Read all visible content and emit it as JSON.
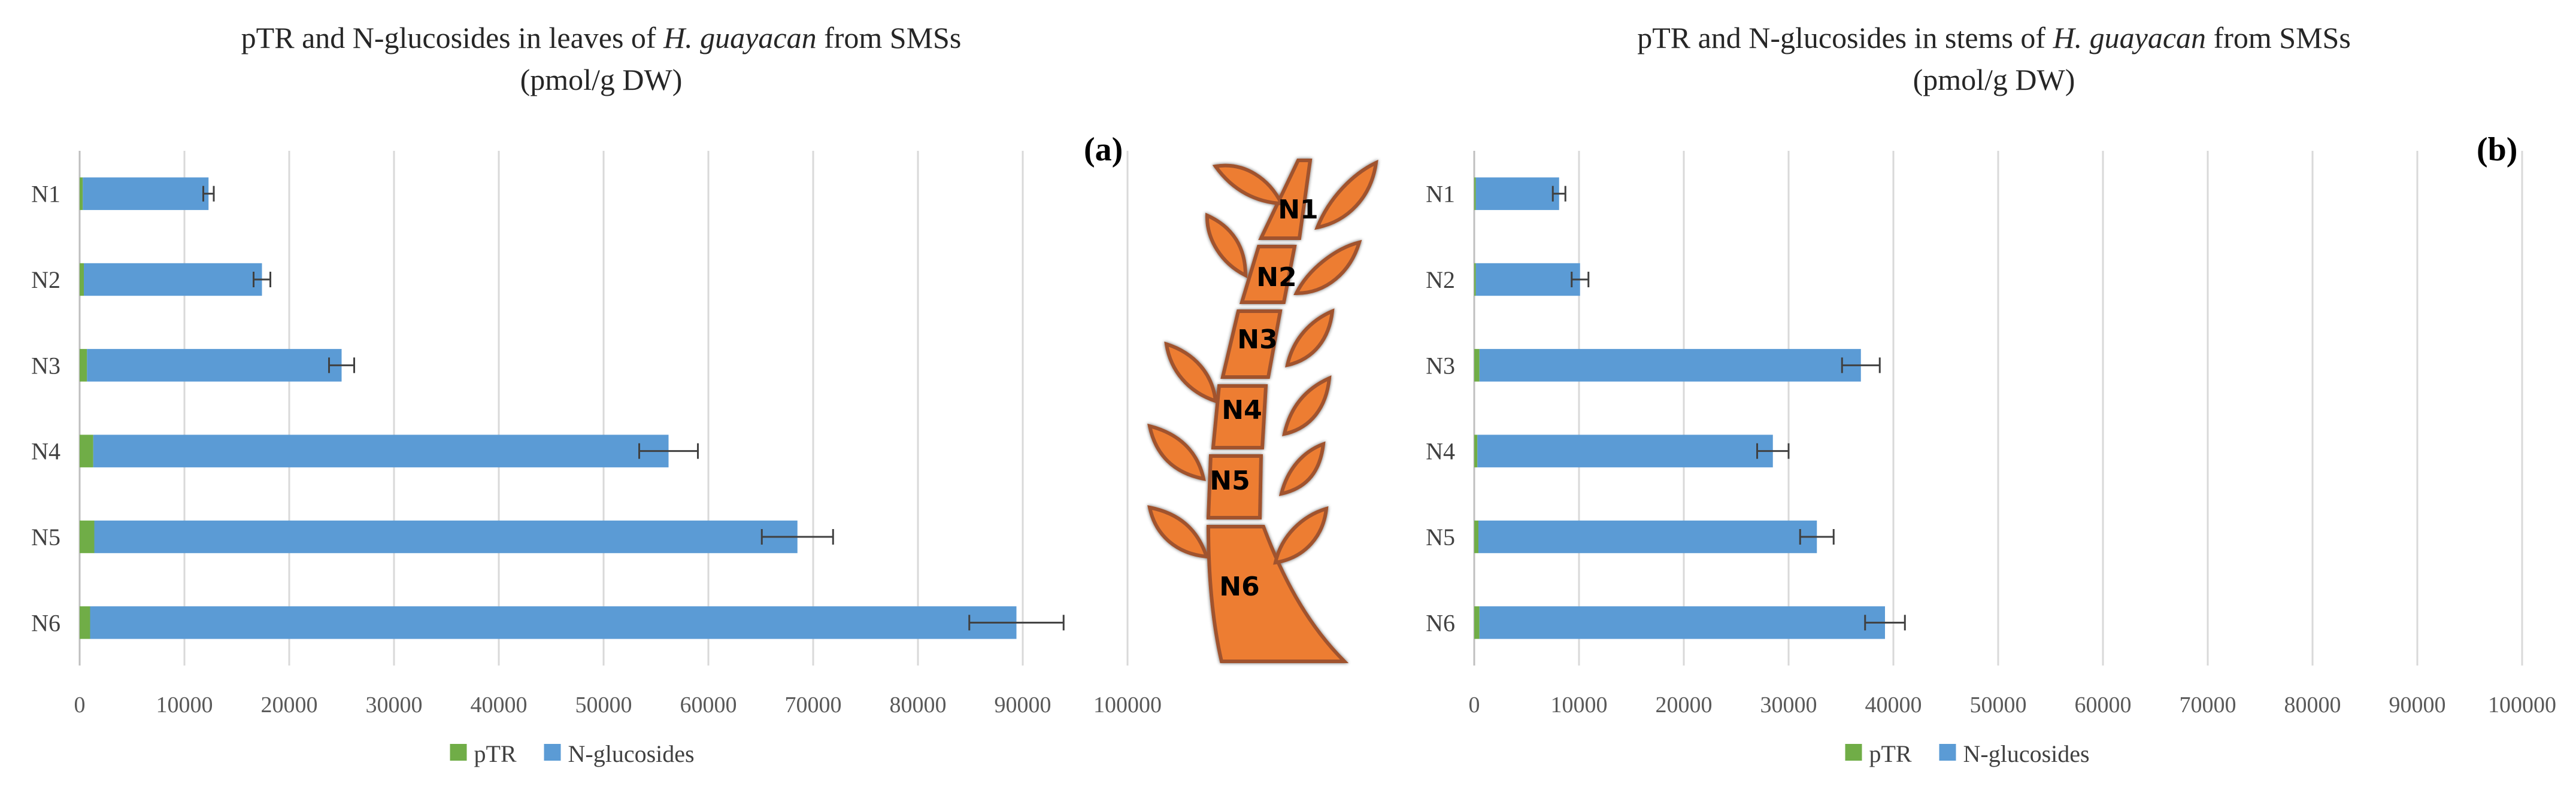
{
  "chart_data": [
    {
      "type": "bar",
      "orientation": "horizontal",
      "stacked": true,
      "panel": "(a)",
      "title": "pTR and N-glucosides in leaves of H. guayacan from SMSs",
      "title_parts": {
        "before": "pTR and N-glucosides in leaves of ",
        "italic": "H. guayacan",
        "after": " from SMSs"
      },
      "subtitle": "(pmol/g DW)",
      "categories": [
        "N1",
        "N2",
        "N3",
        "N4",
        "N5",
        "N6"
      ],
      "series": [
        {
          "name": "pTR",
          "color": "#70ad47",
          "values": [
            300,
            400,
            700,
            1300,
            1400,
            1000
          ]
        },
        {
          "name": "N-glucosides",
          "color": "#5b9bd5",
          "values": [
            12000,
            17000,
            24300,
            54900,
            67100,
            88400
          ],
          "error": [
            500,
            800,
            1200,
            2800,
            3400,
            4500
          ]
        }
      ],
      "xlim": [
        0,
        100000
      ],
      "xticks": [
        "0",
        "10000",
        "20000",
        "30000",
        "40000",
        "50000",
        "60000",
        "70000",
        "80000",
        "90000",
        "100000"
      ],
      "xtick_values": [
        0,
        10000,
        20000,
        30000,
        40000,
        50000,
        60000,
        70000,
        80000,
        90000,
        100000
      ],
      "grid": true,
      "legend": "bottom-center",
      "xlabel": "",
      "ylabel": ""
    },
    {
      "type": "bar",
      "orientation": "horizontal",
      "stacked": true,
      "panel": "(b)",
      "title": "pTR and N-glucosides in stems of H. guayacan from SMSs",
      "title_parts": {
        "before": "pTR and N-glucosides in stems of ",
        "italic": "H. guayacan",
        "after": " from SMSs"
      },
      "subtitle": "(pmol/g DW)",
      "categories": [
        "N1",
        "N2",
        "N3",
        "N4",
        "N5",
        "N6"
      ],
      "series": [
        {
          "name": "pTR",
          "color": "#70ad47",
          "values": [
            150,
            150,
            500,
            300,
            400,
            500
          ]
        },
        {
          "name": "N-glucosides",
          "color": "#5b9bd5",
          "values": [
            7950,
            9950,
            36400,
            28200,
            32300,
            38700
          ],
          "error": [
            600,
            800,
            1800,
            1500,
            1600,
            1900
          ]
        }
      ],
      "xlim": [
        0,
        100000
      ],
      "xticks": [
        "0",
        "10000",
        "20000",
        "30000",
        "40000",
        "50000",
        "60000",
        "70000",
        "80000",
        "90000",
        "100000"
      ],
      "xtick_values": [
        0,
        10000,
        20000,
        30000,
        40000,
        50000,
        60000,
        70000,
        80000,
        90000,
        100000
      ],
      "grid": true,
      "legend": "bottom-center",
      "xlabel": "",
      "ylabel": ""
    }
  ],
  "illustration": {
    "description_name": "plant-stem-nodes",
    "fill_color": "#ed7d31",
    "node_labels": [
      "N1",
      "N2",
      "N3",
      "N4",
      "N5",
      "N6"
    ]
  }
}
